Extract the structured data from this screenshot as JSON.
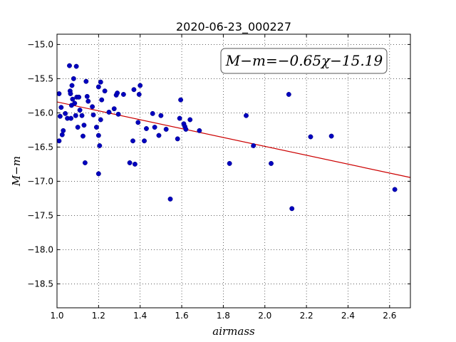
{
  "chart_data": {
    "type": "scatter",
    "title": "2020-06-23_000227",
    "xlabel": "airmass",
    "ylabel": "M−m",
    "xlim": [
      1.0,
      2.7
    ],
    "ylim": [
      -18.85,
      -14.85
    ],
    "y_inverted": true,
    "x_ticks": [
      1.0,
      1.2,
      1.4,
      1.6,
      1.8,
      2.0,
      2.2,
      2.4,
      2.6
    ],
    "x_tick_labels": [
      "1.0",
      "1.2",
      "1.4",
      "1.6",
      "1.8",
      "2.0",
      "2.2",
      "2.4",
      "2.6"
    ],
    "y_ticks": [
      -15.0,
      -15.5,
      -16.0,
      -16.5,
      -17.0,
      -17.5,
      -18.0,
      -18.5
    ],
    "y_tick_labels": [
      "−15.0",
      "−15.5",
      "−16.0",
      "−16.5",
      "−17.0",
      "−17.5",
      "−18.0",
      "−18.5"
    ],
    "grid": true,
    "annotation": "M−m=−0.65χ−15.19",
    "annotation_position": "top-right",
    "fit_line": {
      "slope": -0.65,
      "intercept": -15.19,
      "color": "#cc0000"
    },
    "point_color": "#0000bf",
    "series": [
      {
        "points": [
          [
            1.01,
            -16.41
          ],
          [
            1.01,
            -15.72
          ],
          [
            1.015,
            -16.05
          ],
          [
            1.02,
            -15.92
          ],
          [
            1.025,
            -16.32
          ],
          [
            1.03,
            -16.26
          ],
          [
            1.04,
            -16.01
          ],
          [
            1.05,
            -16.08
          ],
          [
            1.06,
            -15.31
          ],
          [
            1.063,
            -15.68
          ],
          [
            1.065,
            -15.72
          ],
          [
            1.067,
            -16.08
          ],
          [
            1.07,
            -15.89
          ],
          [
            1.072,
            -15.6
          ],
          [
            1.075,
            -15.8
          ],
          [
            1.08,
            -15.5
          ],
          [
            1.085,
            -15.86
          ],
          [
            1.09,
            -16.04
          ],
          [
            1.093,
            -15.32
          ],
          [
            1.095,
            -15.77
          ],
          [
            1.1,
            -16.21
          ],
          [
            1.105,
            -15.77
          ],
          [
            1.11,
            -15.96
          ],
          [
            1.12,
            -16.04
          ],
          [
            1.125,
            -16.34
          ],
          [
            1.13,
            -16.18
          ],
          [
            1.135,
            -16.73
          ],
          [
            1.14,
            -15.54
          ],
          [
            1.145,
            -15.76
          ],
          [
            1.15,
            -15.83
          ],
          [
            1.17,
            -15.91
          ],
          [
            1.175,
            -16.03
          ],
          [
            1.19,
            -16.21
          ],
          [
            1.2,
            -16.33
          ],
          [
            1.2,
            -16.89
          ],
          [
            1.2,
            -15.62
          ],
          [
            1.205,
            -16.48
          ],
          [
            1.21,
            -16.1
          ],
          [
            1.21,
            -15.55
          ],
          [
            1.215,
            -15.81
          ],
          [
            1.23,
            -15.68
          ],
          [
            1.25,
            -15.99
          ],
          [
            1.275,
            -15.94
          ],
          [
            1.285,
            -15.74
          ],
          [
            1.29,
            -15.71
          ],
          [
            1.295,
            -16.02
          ],
          [
            1.32,
            -15.73
          ],
          [
            1.35,
            -16.73
          ],
          [
            1.365,
            -16.41
          ],
          [
            1.37,
            -15.66
          ],
          [
            1.375,
            -16.75
          ],
          [
            1.39,
            -16.14
          ],
          [
            1.395,
            -15.73
          ],
          [
            1.4,
            -15.6
          ],
          [
            1.42,
            -16.41
          ],
          [
            1.43,
            -16.23
          ],
          [
            1.46,
            -16.01
          ],
          [
            1.47,
            -16.21
          ],
          [
            1.49,
            -16.33
          ],
          [
            1.5,
            -16.04
          ],
          [
            1.525,
            -16.24
          ],
          [
            1.545,
            -17.26
          ],
          [
            1.58,
            -16.38
          ],
          [
            1.59,
            -16.08
          ],
          [
            1.595,
            -15.81
          ],
          [
            1.61,
            -16.16
          ],
          [
            1.615,
            -16.2
          ],
          [
            1.62,
            -16.24
          ],
          [
            1.64,
            -16.1
          ],
          [
            1.685,
            -16.26
          ],
          [
            1.83,
            -16.74
          ],
          [
            1.91,
            -16.04
          ],
          [
            1.945,
            -16.48
          ],
          [
            2.03,
            -16.74
          ],
          [
            2.115,
            -15.73
          ],
          [
            2.13,
            -17.4
          ],
          [
            2.22,
            -16.35
          ],
          [
            2.32,
            -16.34
          ],
          [
            2.625,
            -17.12
          ]
        ]
      }
    ]
  }
}
